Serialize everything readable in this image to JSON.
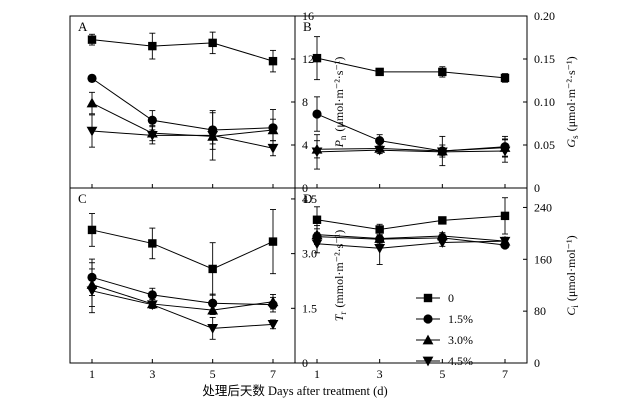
{
  "chart_data": [
    {
      "panel": "A",
      "type": "line",
      "ylabel_main": "P",
      "ylabel_sub": "n",
      "ylabel_unit": "(μmol·m⁻²·s⁻¹)",
      "ylim": [
        0,
        16
      ],
      "yticks": [
        0,
        4,
        8,
        12,
        16
      ],
      "x": [
        1,
        3,
        5,
        7
      ],
      "series": [
        {
          "name": "0",
          "marker": "square",
          "values": [
            13.8,
            13.2,
            13.5,
            11.8
          ],
          "errors": [
            0.5,
            1.2,
            1.0,
            1.0
          ]
        },
        {
          "name": "1.5%",
          "marker": "circle",
          "values": [
            10.2,
            6.3,
            5.4,
            5.6
          ],
          "errors": [
            0.3,
            0.9,
            1.8,
            1.7
          ]
        },
        {
          "name": "3.0%",
          "marker": "triangle-up",
          "values": [
            7.9,
            5.1,
            4.8,
            5.4
          ],
          "errors": [
            1.0,
            0.7,
            2.2,
            1.0
          ]
        },
        {
          "name": "4.5%",
          "marker": "triangle-down",
          "values": [
            5.3,
            4.9,
            4.9,
            3.7
          ],
          "errors": [
            1.5,
            0.8,
            0.8,
            0.7
          ]
        }
      ]
    },
    {
      "panel": "B",
      "type": "line",
      "ylabel_main": "G",
      "ylabel_sub": "s",
      "ylabel_unit": "(μmol·m⁻²·s⁻¹)",
      "ylim": [
        0,
        0.2
      ],
      "yticks": [
        0,
        0.05,
        0.1,
        0.15,
        0.2
      ],
      "ytick_labels": [
        "0",
        "0.05",
        "0.10",
        "0.15",
        "0.20"
      ],
      "x": [
        1,
        3,
        5,
        7
      ],
      "series": [
        {
          "name": "0",
          "marker": "square",
          "values": [
            0.151,
            0.135,
            0.135,
            0.128
          ],
          "errors": [
            0.025,
            0.004,
            0.006,
            0.005
          ]
        },
        {
          "name": "1.5%",
          "marker": "circle",
          "values": [
            0.086,
            0.055,
            0.043,
            0.048
          ],
          "errors": [
            0.02,
            0.007,
            0.007,
            0.012
          ]
        },
        {
          "name": "3.0%",
          "marker": "triangle-up",
          "values": [
            0.045,
            0.046,
            0.043,
            0.047
          ],
          "errors": [
            0.01,
            0.003,
            0.017,
            0.01
          ]
        },
        {
          "name": "4.5%",
          "marker": "triangle-down",
          "values": [
            0.042,
            0.044,
            0.042,
            0.043
          ],
          "errors": [
            0.02,
            0.004,
            0.004,
            0.013
          ]
        }
      ]
    },
    {
      "panel": "C",
      "type": "line",
      "ylabel_main": "T",
      "ylabel_sub": "r",
      "ylabel_unit": "(mmol·m⁻²·s⁻¹)",
      "ylim": [
        0,
        4.8
      ],
      "yticks": [
        0,
        1.5,
        3.0,
        4.5
      ],
      "ytick_labels": [
        "0",
        "1.5",
        "3.0",
        "4.5"
      ],
      "x": [
        1,
        3,
        5,
        7
      ],
      "series": [
        {
          "name": "0",
          "marker": "square",
          "values": [
            3.65,
            3.28,
            2.58,
            3.33
          ],
          "errors": [
            0.45,
            0.42,
            0.72,
            0.88
          ]
        },
        {
          "name": "1.5%",
          "marker": "circle",
          "values": [
            2.35,
            1.87,
            1.64,
            1.6
          ],
          "errors": [
            0.5,
            0.18,
            0.25,
            0.2
          ]
        },
        {
          "name": "3.0%",
          "marker": "triangle-up",
          "values": [
            2.15,
            1.62,
            1.45,
            1.68
          ],
          "errors": [
            0.6,
            0.12,
            0.12,
            0.2
          ]
        },
        {
          "name": "4.5%",
          "marker": "triangle-down",
          "values": [
            1.98,
            1.6,
            0.95,
            1.06
          ],
          "errors": [
            0.6,
            0.1,
            0.3,
            0.12
          ]
        }
      ]
    },
    {
      "panel": "D",
      "type": "line",
      "ylabel_main": "C",
      "ylabel_sub": "i",
      "ylabel_unit": "(μmol·mol⁻¹)",
      "ylim": [
        0,
        270
      ],
      "yticks": [
        0,
        80,
        160,
        240
      ],
      "x": [
        1,
        3,
        5,
        7
      ],
      "series": [
        {
          "name": "0",
          "marker": "square",
          "values": [
            221,
            206,
            220,
            227
          ],
          "errors": [
            20,
            8,
            5,
            28
          ]
        },
        {
          "name": "1.5%",
          "marker": "circle",
          "values": [
            195,
            191,
            193,
            182
          ],
          "errors": [
            12,
            6,
            6,
            4
          ]
        },
        {
          "name": "3.0%",
          "marker": "triangle-up",
          "values": [
            198,
            192,
            196,
            188
          ],
          "errors": [
            14,
            10,
            5,
            4
          ]
        },
        {
          "name": "4.5%",
          "marker": "triangle-down",
          "values": [
            184,
            177,
            186,
            188
          ],
          "errors": [
            14,
            25,
            6,
            6
          ]
        }
      ]
    }
  ],
  "xlabel": "处理后天数 Days after treatment (d)",
  "xtick_labels": [
    "1",
    "3",
    "5",
    "7"
  ],
  "legend": {
    "position": "inside-panel-D-lower-center",
    "entries": [
      "0",
      "1.5%",
      "3.0%",
      "4.5%"
    ]
  }
}
